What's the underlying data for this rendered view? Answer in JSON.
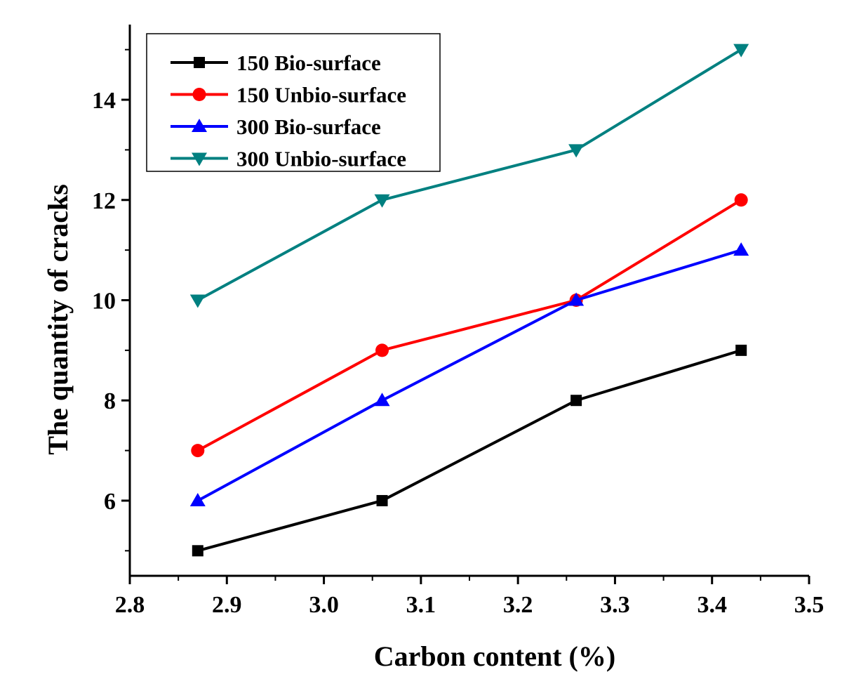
{
  "chart_data": {
    "type": "line",
    "xlabel": "Carbon content (%)",
    "ylabel": "The quantity of cracks",
    "xlim": [
      2.8,
      3.5
    ],
    "ylim": [
      4.5,
      15.5
    ],
    "x_ticks": [
      "2.8",
      "2.9",
      "3.0",
      "3.1",
      "3.2",
      "3.3",
      "3.4",
      "3.5"
    ],
    "y_ticks": [
      "6",
      "8",
      "10",
      "12",
      "14"
    ],
    "x": [
      2.87,
      3.06,
      3.26,
      3.43
    ],
    "grid": false,
    "legend_position": "top-left",
    "series": [
      {
        "name": "150 Bio-surface",
        "values": [
          5,
          6,
          8,
          9
        ],
        "color": "#000000",
        "marker": "square"
      },
      {
        "name": "150 Unbio-surface",
        "values": [
          7,
          9,
          10,
          12
        ],
        "color": "#ff0000",
        "marker": "circle"
      },
      {
        "name": "300 Bio-surface",
        "values": [
          6,
          8,
          10,
          11
        ],
        "color": "#0000ff",
        "marker": "triangle-up"
      },
      {
        "name": "300 Unbio-surface",
        "values": [
          10,
          12,
          13,
          15
        ],
        "color": "#008080",
        "marker": "triangle-down"
      }
    ]
  }
}
